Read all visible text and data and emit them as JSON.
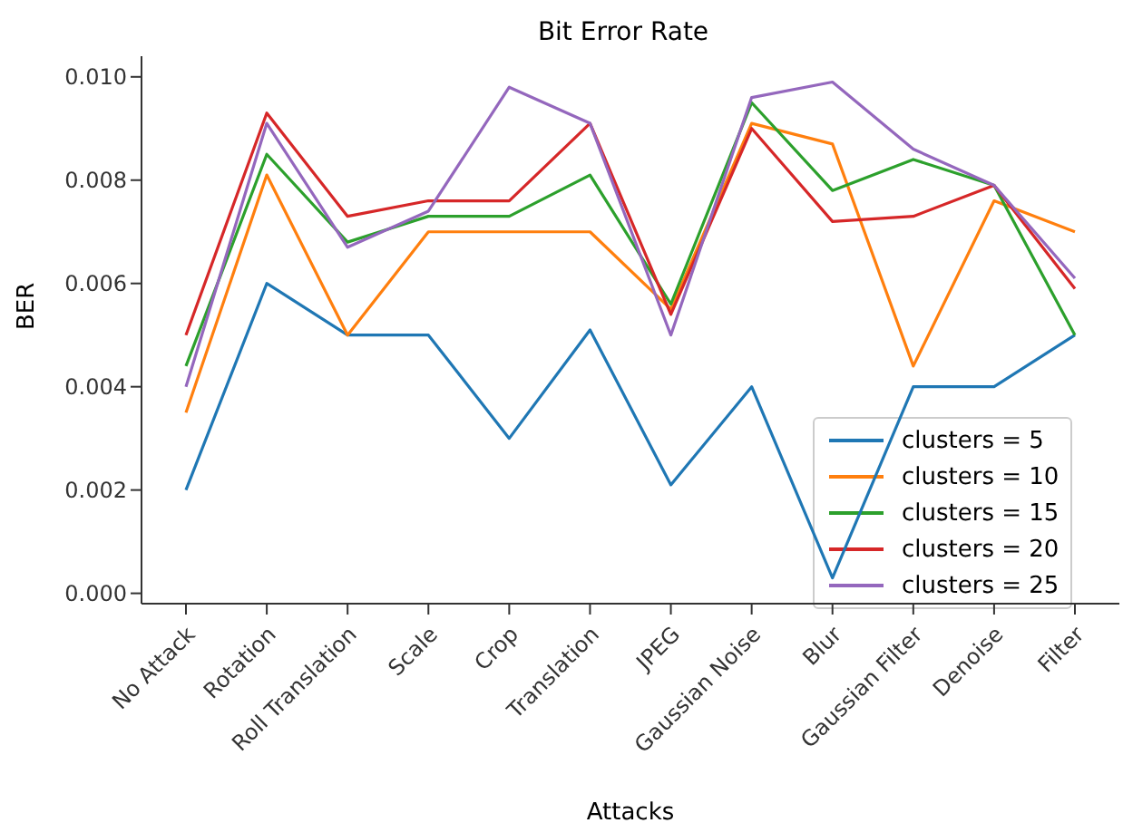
{
  "chart_data": {
    "type": "line",
    "title": "Bit Error Rate",
    "xlabel": "Attacks",
    "ylabel": "BER",
    "categories": [
      "No Attack",
      "Rotation",
      "Roll Translation",
      "Scale",
      "Crop",
      "Translation",
      "JPEG",
      "Gaussian Noise",
      "Blur",
      "Gaussian Filter",
      "Denoise",
      "Filter"
    ],
    "series": [
      {
        "name": "clusters = 5",
        "color": "#1f77b4",
        "values": [
          0.002,
          0.006,
          0.005,
          0.005,
          0.003,
          0.0051,
          0.0021,
          0.004,
          0.0003,
          0.004,
          0.004,
          0.005
        ]
      },
      {
        "name": "clusters = 10",
        "color": "#ff7f0e",
        "values": [
          0.0035,
          0.0081,
          0.005,
          0.007,
          0.007,
          0.007,
          0.0055,
          0.0091,
          0.0087,
          0.0044,
          0.0076,
          0.007
        ]
      },
      {
        "name": "clusters = 15",
        "color": "#2ca02c",
        "values": [
          0.0044,
          0.0085,
          0.0068,
          0.0073,
          0.0073,
          0.0081,
          0.0056,
          0.0095,
          0.0078,
          0.0084,
          0.0079,
          0.005
        ]
      },
      {
        "name": "clusters = 20",
        "color": "#d62728",
        "values": [
          0.005,
          0.0093,
          0.0073,
          0.0076,
          0.0076,
          0.0091,
          0.0054,
          0.009,
          0.0072,
          0.0073,
          0.0079,
          0.0059
        ]
      },
      {
        "name": "clusters = 25",
        "color": "#9467bd",
        "values": [
          0.004,
          0.0091,
          0.0067,
          0.0074,
          0.0098,
          0.0091,
          0.005,
          0.0096,
          0.0099,
          0.0086,
          0.0079,
          0.0061
        ]
      }
    ],
    "ylim": [
      -0.0002,
      0.0104
    ],
    "yticks": [
      {
        "value": 0,
        "label": "0.000"
      },
      {
        "value": 0.002,
        "label": "0.002"
      },
      {
        "value": 0.004,
        "label": "0.004"
      },
      {
        "value": 0.006,
        "label": "0.006"
      },
      {
        "value": 0.008,
        "label": "0.008"
      },
      {
        "value": 0.01,
        "label": "0.010"
      }
    ],
    "grid": false,
    "legend": "bottom right",
    "marker": "none",
    "line_style": "solid"
  }
}
